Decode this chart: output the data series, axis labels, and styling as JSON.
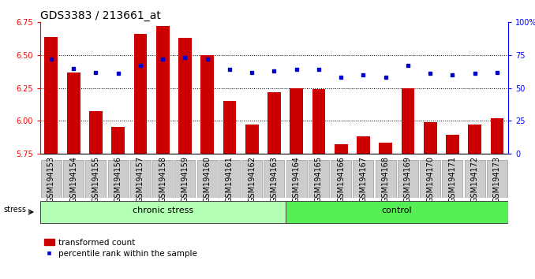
{
  "title": "GDS3383 / 213661_at",
  "samples": [
    "GSM194153",
    "GSM194154",
    "GSM194155",
    "GSM194156",
    "GSM194157",
    "GSM194158",
    "GSM194159",
    "GSM194160",
    "GSM194161",
    "GSM194162",
    "GSM194163",
    "GSM194164",
    "GSM194165",
    "GSM194166",
    "GSM194167",
    "GSM194168",
    "GSM194169",
    "GSM194170",
    "GSM194171",
    "GSM194172",
    "GSM194173"
  ],
  "bar_values": [
    6.64,
    6.37,
    6.07,
    5.95,
    6.66,
    6.72,
    6.63,
    6.5,
    6.15,
    5.97,
    6.22,
    6.25,
    6.24,
    5.82,
    5.88,
    5.83,
    6.25,
    5.99,
    5.89,
    5.97,
    6.02
  ],
  "dot_values": [
    72,
    65,
    62,
    61,
    67,
    72,
    73,
    72,
    64,
    62,
    63,
    64,
    64,
    58,
    60,
    58,
    67,
    61,
    60,
    61,
    62
  ],
  "bar_color": "#cc0000",
  "dot_color": "#0000cc",
  "ylim_left": [
    5.75,
    6.75
  ],
  "ylim_right": [
    0,
    100
  ],
  "yticks_left": [
    5.75,
    6.0,
    6.25,
    6.5,
    6.75
  ],
  "yticks_right": [
    0,
    25,
    50,
    75,
    100
  ],
  "ytick_labels_right": [
    "0",
    "25",
    "50",
    "75",
    "100%"
  ],
  "grid_values": [
    6.0,
    6.25,
    6.5
  ],
  "chronic_stress_count": 11,
  "group_labels": [
    "chronic stress",
    "control"
  ],
  "stress_label": "stress",
  "legend_labels": [
    "transformed count",
    "percentile rank within the sample"
  ],
  "bar_bottom": 5.75,
  "title_fontsize": 10,
  "tick_fontsize": 7,
  "group_fontsize": 8
}
